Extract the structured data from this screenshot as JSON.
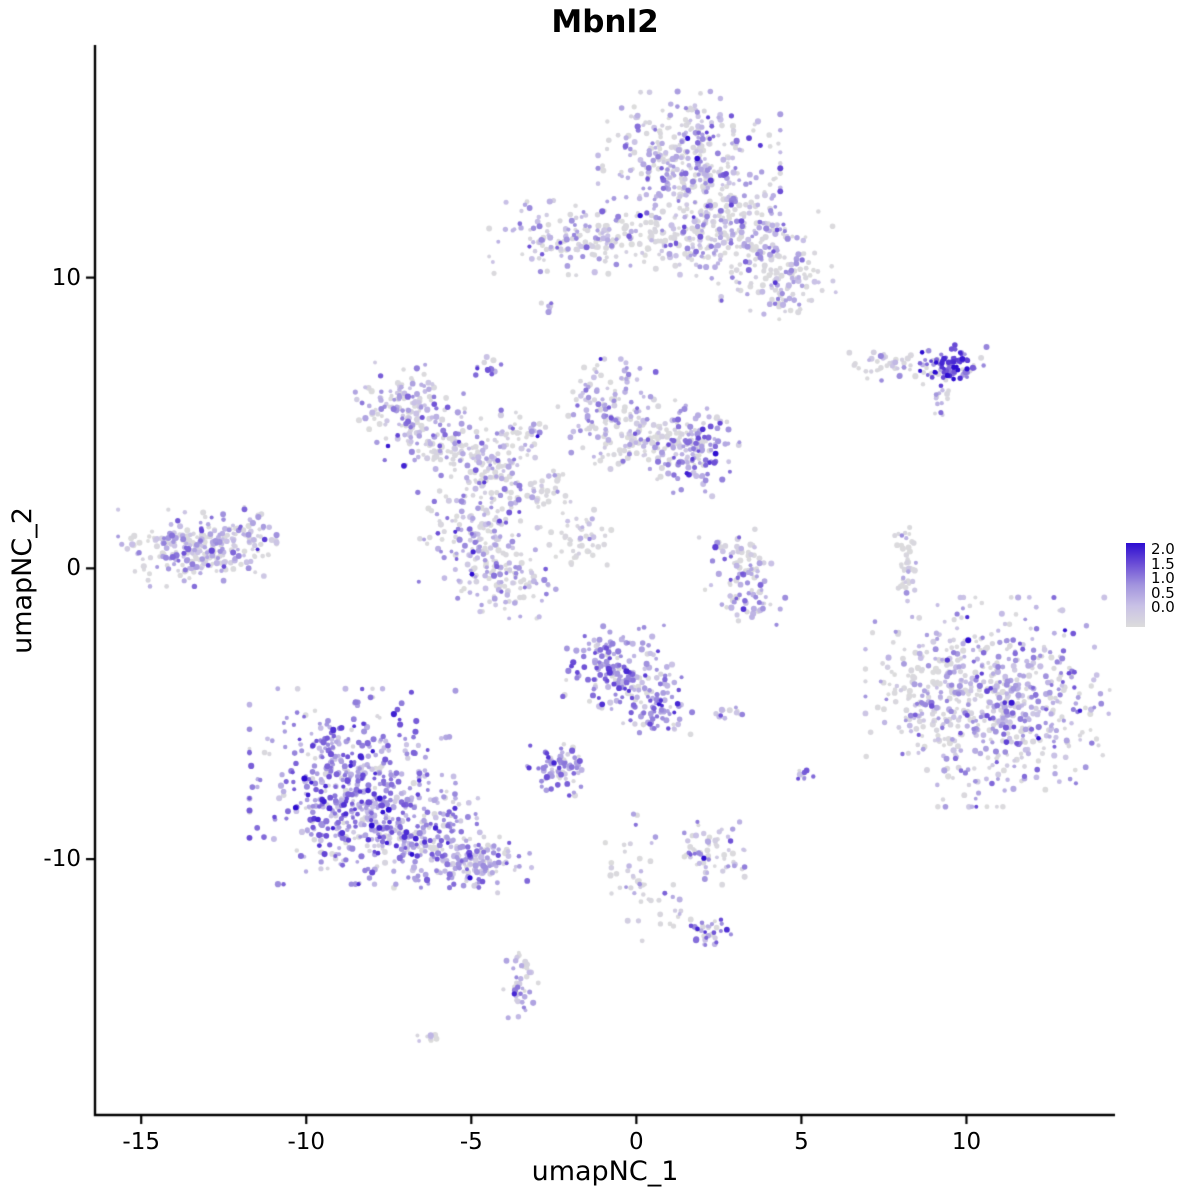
{
  "figure": {
    "title": "Mbnl2"
  },
  "chart_data": {
    "type": "scatter",
    "title": "Mbnl2",
    "subtitle": "",
    "xlabel": "umapNC_1",
    "ylabel": "umapNC_2",
    "xlim": [
      -16.4,
      14.5
    ],
    "ylim": [
      -18.8,
      18.0
    ],
    "x_ticks": [
      -15,
      -10,
      -5,
      0,
      5,
      10
    ],
    "y_ticks": [
      10,
      0,
      -10
    ],
    "grid": false,
    "legend": {
      "position": "right",
      "min": 0,
      "max": 2,
      "labels": [
        "2.0",
        "1.5",
        "1.0",
        "0.5",
        "0.0"
      ]
    },
    "colorscale": [
      "#DCDCDC",
      "#C9C1E6",
      "#A294DE",
      "#6C4ED6",
      "#2D0DD1"
    ],
    "point_seed": 7,
    "cluster_fields": [
      "center_x",
      "center_y",
      "sd_x",
      "sd_y",
      "n_points",
      "mean_expression",
      "gray_fraction"
    ],
    "clusters": [
      [
        1.6,
        14.0,
        1.15,
        1.0,
        380,
        0.7,
        0.35
      ],
      [
        -2.3,
        11.4,
        0.9,
        0.55,
        120,
        0.7,
        0.35
      ],
      [
        0.9,
        11.3,
        1.5,
        0.5,
        150,
        0.4,
        0.5
      ],
      [
        2.6,
        12.2,
        0.7,
        0.6,
        90,
        0.6,
        0.4
      ],
      [
        3.6,
        10.9,
        1.0,
        0.8,
        150,
        0.7,
        0.35
      ],
      [
        4.6,
        9.6,
        0.6,
        0.5,
        70,
        0.5,
        0.45
      ],
      [
        -2.7,
        9.0,
        0.12,
        0.12,
        8,
        0.5,
        0.3
      ],
      [
        -4.5,
        6.9,
        0.18,
        0.18,
        14,
        0.9,
        0.2
      ],
      [
        8.0,
        6.9,
        0.8,
        0.28,
        55,
        0.4,
        0.5
      ],
      [
        9.6,
        7.0,
        0.42,
        0.3,
        90,
        1.5,
        0.08
      ],
      [
        9.2,
        5.9,
        0.18,
        0.28,
        14,
        0.7,
        0.3
      ],
      [
        -7.0,
        5.4,
        0.75,
        0.7,
        150,
        0.7,
        0.3
      ],
      [
        -5.6,
        4.3,
        0.6,
        0.5,
        90,
        0.6,
        0.35
      ],
      [
        -4.5,
        3.2,
        0.7,
        0.6,
        110,
        0.6,
        0.35
      ],
      [
        -3.4,
        4.6,
        0.35,
        0.4,
        40,
        0.5,
        0.4
      ],
      [
        -0.9,
        5.4,
        0.65,
        0.75,
        140,
        0.7,
        0.3
      ],
      [
        0.4,
        4.5,
        0.7,
        0.45,
        80,
        0.4,
        0.5
      ],
      [
        1.8,
        4.1,
        0.55,
        0.7,
        150,
        0.9,
        0.2
      ],
      [
        -2.6,
        2.7,
        0.3,
        0.3,
        30,
        0.4,
        0.5
      ],
      [
        -1.7,
        1.2,
        0.5,
        0.45,
        50,
        0.25,
        0.7
      ],
      [
        -4.7,
        1.1,
        0.8,
        0.65,
        130,
        0.7,
        0.3
      ],
      [
        -4.0,
        -0.4,
        0.65,
        0.55,
        110,
        0.6,
        0.35
      ],
      [
        -13.3,
        0.7,
        1.0,
        0.55,
        270,
        0.6,
        0.3
      ],
      [
        -11.8,
        1.2,
        0.4,
        0.4,
        40,
        0.5,
        0.4
      ],
      [
        3.1,
        0.4,
        0.5,
        0.4,
        45,
        0.5,
        0.4
      ],
      [
        3.4,
        -0.9,
        0.55,
        0.45,
        60,
        0.9,
        0.25
      ],
      [
        8.2,
        0.1,
        0.16,
        0.7,
        45,
        0.4,
        0.5
      ],
      [
        10.9,
        -4.6,
        1.65,
        1.5,
        650,
        0.7,
        0.3
      ],
      [
        8.7,
        -4.0,
        0.5,
        0.9,
        60,
        0.4,
        0.5
      ],
      [
        -0.6,
        -3.4,
        0.7,
        0.6,
        170,
        1.0,
        0.12
      ],
      [
        0.5,
        -4.6,
        0.5,
        0.6,
        90,
        0.9,
        0.15
      ],
      [
        -2.3,
        -6.9,
        0.42,
        0.38,
        75,
        1.0,
        0.12
      ],
      [
        2.7,
        -5.0,
        0.3,
        0.13,
        12,
        0.9,
        0.2
      ],
      [
        5.0,
        -7.1,
        0.15,
        0.15,
        9,
        1.1,
        0.15
      ],
      [
        -8.6,
        -7.5,
        1.3,
        1.4,
        560,
        0.95,
        0.1
      ],
      [
        -6.4,
        -9.3,
        1.0,
        0.7,
        210,
        0.85,
        0.12
      ],
      [
        -4.7,
        -10.2,
        0.7,
        0.4,
        110,
        0.7,
        0.2
      ],
      [
        2.2,
        -9.8,
        0.45,
        0.45,
        65,
        0.6,
        0.35
      ],
      [
        -0.1,
        -10.5,
        0.35,
        1.0,
        38,
        0.6,
        0.35
      ],
      [
        1.1,
        -11.9,
        0.35,
        0.35,
        14,
        0.5,
        0.4
      ],
      [
        2.2,
        -12.6,
        0.33,
        0.3,
        32,
        0.8,
        0.2
      ],
      [
        -3.5,
        -14.4,
        0.22,
        0.55,
        42,
        0.7,
        0.25
      ],
      [
        -6.2,
        -16.2,
        0.18,
        0.12,
        9,
        0.4,
        0.5
      ]
    ]
  }
}
